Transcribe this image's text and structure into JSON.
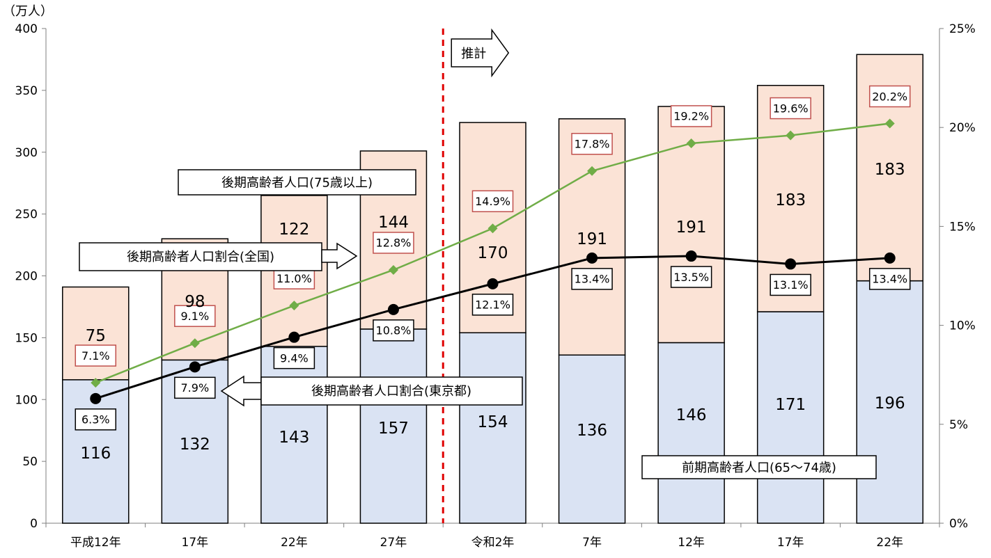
{
  "chart_data": {
    "type": "bar",
    "stacked": true,
    "unit_label": "（万人）",
    "categories": [
      "平成12年",
      "17年",
      "22年",
      "27年",
      "令和2年",
      "7年",
      "12年",
      "17年",
      "22年"
    ],
    "y_left": {
      "min": 0,
      "max": 400,
      "ticks": [
        "0",
        "50",
        "100",
        "150",
        "200",
        "250",
        "300",
        "350",
        "400"
      ]
    },
    "y_right": {
      "min": 0,
      "max": 25,
      "ticks": [
        "0%",
        "5%",
        "10%",
        "15%",
        "20%",
        "25%"
      ]
    },
    "grid": false,
    "series": [
      {
        "name": "前期高齢者人口（65～74歳）",
        "type": "bar",
        "color": "#dae3f3",
        "values": [
          116,
          132,
          143,
          157,
          154,
          136,
          146,
          171,
          196
        ]
      },
      {
        "name": "後期高齢者人口（75歳以上）",
        "type": "bar",
        "color": "#fbe3d6",
        "values": [
          75,
          98,
          122,
          144,
          170,
          191,
          191,
          183,
          183
        ]
      },
      {
        "name": "後期高齢者人口割合（全国）",
        "type": "line",
        "axis": "right",
        "color": "#70ad47",
        "marker": "diamond",
        "values": [
          7.1,
          9.1,
          11.0,
          12.8,
          14.9,
          17.8,
          19.2,
          19.6,
          20.2
        ],
        "labels": [
          "7.1%",
          "9.1%",
          "11.0%",
          "12.8%",
          "14.9%",
          "17.8%",
          "19.2%",
          "19.6%",
          "20.2%"
        ],
        "label_border": "#c0504d"
      },
      {
        "name": "後期高齢者人口割合（東京都）",
        "type": "line",
        "axis": "right",
        "color": "#000000",
        "marker": "circle",
        "values": [
          6.3,
          7.9,
          9.4,
          10.8,
          12.1,
          13.4,
          13.5,
          13.1,
          13.4
        ],
        "labels": [
          "6.3%",
          "7.9%",
          "9.4%",
          "10.8%",
          "12.1%",
          "13.4%",
          "13.5%",
          "13.1%",
          "13.4%"
        ],
        "label_border": "#000000"
      }
    ],
    "bar_labels_lower": [
      "116",
      "132",
      "143",
      "157",
      "154",
      "136",
      "146",
      "171",
      "196"
    ],
    "bar_labels_upper": [
      "75",
      "98",
      "122",
      "144",
      "170",
      "191",
      "191",
      "183",
      "183"
    ],
    "projection_divider": {
      "after_category_index": 3,
      "color": "#e00000",
      "label": "推計"
    },
    "callouts": {
      "upper_bars": "後期高齢者人口(75歳以上)",
      "national_line": "後期高齢者人口割合(全国)",
      "tokyo_line": "後期高齢者人口割合(東京都)",
      "lower_bars": "前期高齢者人口(65～74歳)"
    }
  }
}
